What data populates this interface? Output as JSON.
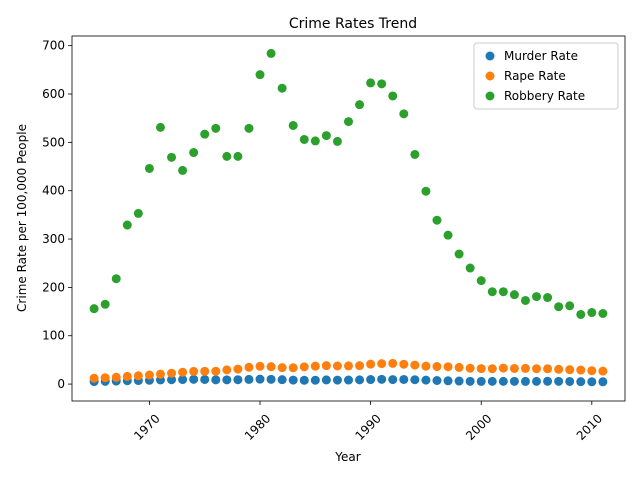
{
  "chart_data": {
    "type": "scatter",
    "title": "Crime Rates Trend",
    "xlabel": "Year",
    "ylabel": "Crime Rate per 100,000 People",
    "xlim": [
      1963,
      2013
    ],
    "ylim": [
      -35,
      720
    ],
    "xticks": [
      1970,
      1980,
      1990,
      2000,
      2010
    ],
    "yticks": [
      0,
      100,
      200,
      300,
      400,
      500,
      600,
      700
    ],
    "x_tick_rotation": -45,
    "grid": false,
    "legend_position": "top-right",
    "x": [
      1965,
      1966,
      1967,
      1968,
      1969,
      1970,
      1971,
      1972,
      1973,
      1974,
      1975,
      1976,
      1977,
      1978,
      1979,
      1980,
      1981,
      1982,
      1983,
      1984,
      1985,
      1986,
      1987,
      1988,
      1989,
      1990,
      1991,
      1992,
      1993,
      1994,
      1995,
      1996,
      1997,
      1998,
      1999,
      2000,
      2001,
      2002,
      2003,
      2004,
      2005,
      2006,
      2007,
      2008,
      2009,
      2010,
      2011
    ],
    "series": [
      {
        "name": "Murder Rate",
        "color": "#1f77b4",
        "values": [
          5.1,
          5.6,
          6.2,
          6.9,
          7.3,
          7.9,
          8.6,
          9.0,
          9.4,
          9.8,
          9.6,
          8.8,
          8.8,
          9.0,
          9.7,
          10.2,
          9.8,
          9.1,
          8.3,
          7.9,
          8.0,
          8.6,
          8.3,
          8.4,
          8.7,
          9.4,
          9.8,
          9.3,
          9.5,
          9.0,
          8.2,
          7.4,
          6.8,
          6.3,
          5.7,
          5.5,
          5.6,
          5.6,
          5.7,
          5.5,
          5.6,
          5.8,
          5.7,
          5.4,
          5.0,
          4.8,
          4.7
        ]
      },
      {
        "name": "Rape Rate",
        "color": "#ff7f0e",
        "values": [
          12.1,
          13.2,
          14.0,
          15.9,
          17.2,
          18.7,
          20.5,
          22.5,
          24.5,
          26.2,
          26.3,
          26.6,
          29.4,
          31.0,
          34.7,
          36.8,
          36.0,
          34.0,
          33.7,
          35.7,
          37.1,
          38.1,
          37.4,
          37.6,
          38.1,
          41.2,
          42.3,
          42.8,
          41.1,
          39.3,
          37.1,
          36.3,
          35.9,
          34.5,
          32.8,
          32.0,
          31.8,
          33.1,
          32.3,
          32.4,
          31.8,
          31.6,
          30.6,
          29.8,
          29.1,
          27.7,
          26.8
        ]
      },
      {
        "name": "Robbery Rate",
        "color": "#2ca02c",
        "values": [
          156,
          165,
          218,
          329,
          353,
          446,
          531,
          469,
          442,
          479,
          517,
          529,
          471,
          471,
          529,
          640,
          684,
          612,
          535,
          506,
          503,
          514,
          502,
          543,
          578,
          623,
          621,
          596,
          559,
          475,
          399,
          339,
          308,
          269,
          240,
          214,
          191,
          191,
          185,
          173,
          181,
          179,
          160,
          162,
          144,
          148,
          146
        ]
      }
    ]
  }
}
